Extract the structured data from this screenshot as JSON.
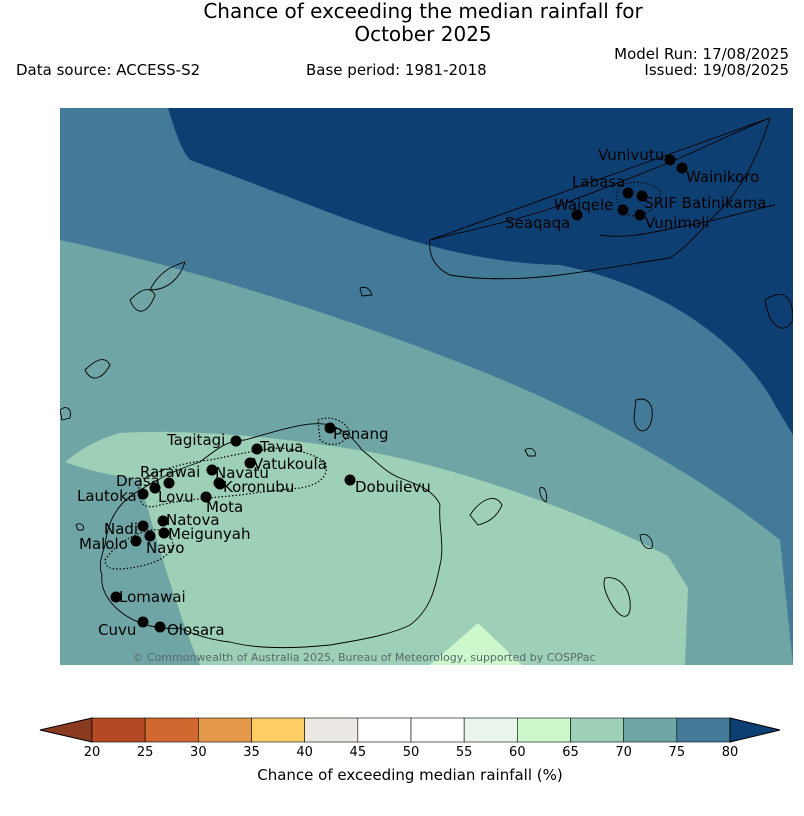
{
  "header": {
    "title_line1": "Chance of exceeding the median rainfall for",
    "title_line2": "October 2025",
    "data_source": "Data source: ACCESS-S2",
    "base_period": "Base period: 1981-2018",
    "model_run": "Model Run: 17/08/2025",
    "issued": "Issued: 19/08/2025"
  },
  "map": {
    "credit": "© Commonwealth of Australia 2025, Bureau of Meteorology, supported by COSPPac",
    "sites": [
      {
        "name": "Vunivutu"
      },
      {
        "name": "Wainikoro"
      },
      {
        "name": "Labasa"
      },
      {
        "name": "SRIF Batinikama"
      },
      {
        "name": "Waiqele"
      },
      {
        "name": "Seaqaqa"
      },
      {
        "name": "Vunimoli"
      },
      {
        "name": "Penang"
      },
      {
        "name": "Tagitagi"
      },
      {
        "name": "Tavua"
      },
      {
        "name": "Vatukoula"
      },
      {
        "name": "Rarawai"
      },
      {
        "name": "Navatu"
      },
      {
        "name": "Drasa"
      },
      {
        "name": "Koronubu"
      },
      {
        "name": "Lautoka"
      },
      {
        "name": "Lovu"
      },
      {
        "name": "Mota"
      },
      {
        "name": "Dobuilevu"
      },
      {
        "name": "Natova"
      },
      {
        "name": "Nadi"
      },
      {
        "name": "Meigunyah"
      },
      {
        "name": "Malolo"
      },
      {
        "name": "Navo"
      },
      {
        "name": "Lomawai"
      },
      {
        "name": "Cuvu"
      },
      {
        "name": "Olosara"
      }
    ]
  },
  "colorbar": {
    "title": "Chance of exceeding median rainfall (%)",
    "ticks": [
      "20",
      "25",
      "30",
      "35",
      "40",
      "45",
      "50",
      "55",
      "60",
      "65",
      "70",
      "75",
      "80"
    ],
    "colors": {
      "lt20": "#8a3a1e",
      "20-25": "#b34a24",
      "25-30": "#d0682f",
      "30-35": "#e49a4a",
      "35-40": "#ffcf66",
      "40-45": "#ece8e3",
      "45-50": "#ffffff",
      "50-55": "#ffffff",
      "55-60": "#e9f4ea",
      "60-65": "#ccf8cc",
      "65-70": "#9dd0b7",
      "70-75": "#70a5a5",
      "75-80": "#437a97",
      "gt80": "#0e3f73"
    }
  }
}
